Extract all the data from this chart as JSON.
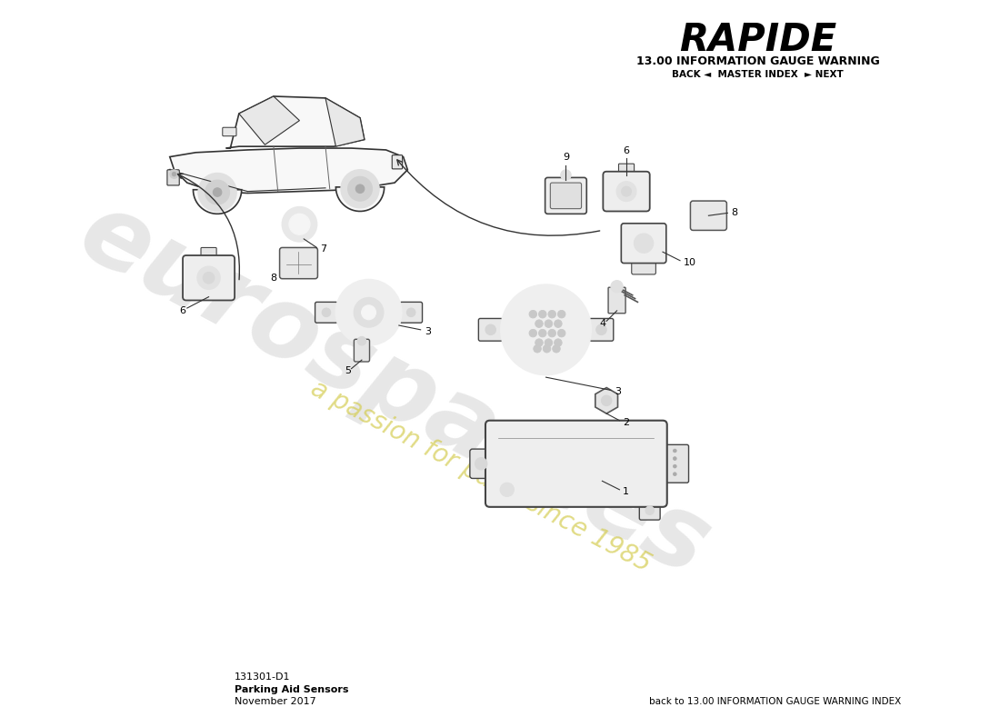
{
  "title": "RAPIDE",
  "subtitle": "13.00 INFORMATION GAUGE WARNING",
  "nav": "BACK ◄  MASTER INDEX  ► NEXT",
  "footer_left_line1": "131301-D1",
  "footer_left_line2": "Parking Aid Sensors",
  "footer_left_line3": "November 2017",
  "footer_right": "back to 13.00 INFORMATION GAUGE WARNING INDEX",
  "bg_color": "#ffffff",
  "watermark_text_color": "#c8c8c8",
  "watermark_slogan_color": "#d4cc50",
  "line_color": "#333333",
  "part_fill": "#f5f5f5",
  "part_edge": "#444444"
}
